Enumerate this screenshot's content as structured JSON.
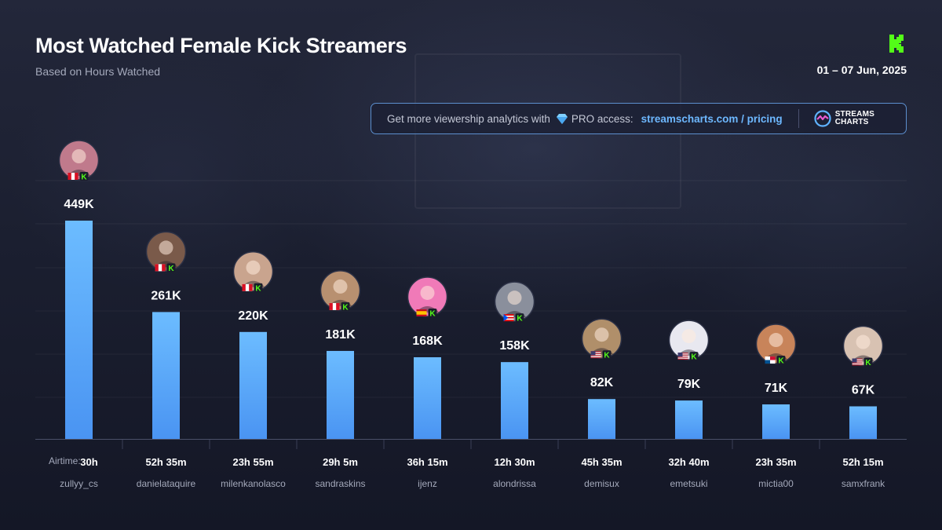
{
  "header": {
    "title": "Most Watched Female Kick Streamers",
    "subtitle": "Based on Hours Watched",
    "date": "01 – 07 Jun, 2025"
  },
  "promo": {
    "text": "Get more viewership analytics with",
    "pro": "PRO access:",
    "link": "streamscharts.com / pricing",
    "logo_line1": "STREAMS",
    "logo_line2": "CHARTS"
  },
  "colors": {
    "bar_top": "#6cbcff",
    "bar_bottom": "#4a94f2",
    "kick_green": "#53fc18",
    "promo_border": "#5c8fce"
  },
  "airtime_prefix": "Airtime:",
  "chart_data": {
    "type": "bar",
    "title": "Most Watched Female Kick Streamers",
    "subtitle": "Based on Hours Watched",
    "categories": [
      "zullyy_cs",
      "danielataquire",
      "milenkanolasco",
      "sandraskins",
      "ijenz",
      "alondrissa",
      "demisux",
      "emetsuki",
      "mictia00",
      "samxfrank"
    ],
    "values": [
      449000,
      261000,
      220000,
      181000,
      168000,
      158000,
      82000,
      79000,
      71000,
      67000
    ],
    "value_labels": [
      "449K",
      "261K",
      "220K",
      "181K",
      "168K",
      "158K",
      "82K",
      "79K",
      "71K",
      "67K"
    ],
    "airtime": [
      "30h",
      "52h 35m",
      "23h 55m",
      "29h 5m",
      "36h 15m",
      "12h 30m",
      "45h 35m",
      "32h 40m",
      "23h 35m",
      "52h 15m"
    ],
    "flags": [
      "peru",
      "peru",
      "peru",
      "peru",
      "spain",
      "puerto-rico",
      "usa",
      "usa",
      "panama",
      "usa"
    ],
    "avatar_colors": [
      "#c07a8c",
      "#7a5a4a",
      "#c9a48e",
      "#b89070",
      "#f07ab8",
      "#8a8f9c",
      "#b08f6a",
      "#e8e8f0",
      "#c8845a",
      "#d8c2b2"
    ],
    "ylim": [
      0,
      449000
    ],
    "grid": true,
    "legend": "none"
  }
}
